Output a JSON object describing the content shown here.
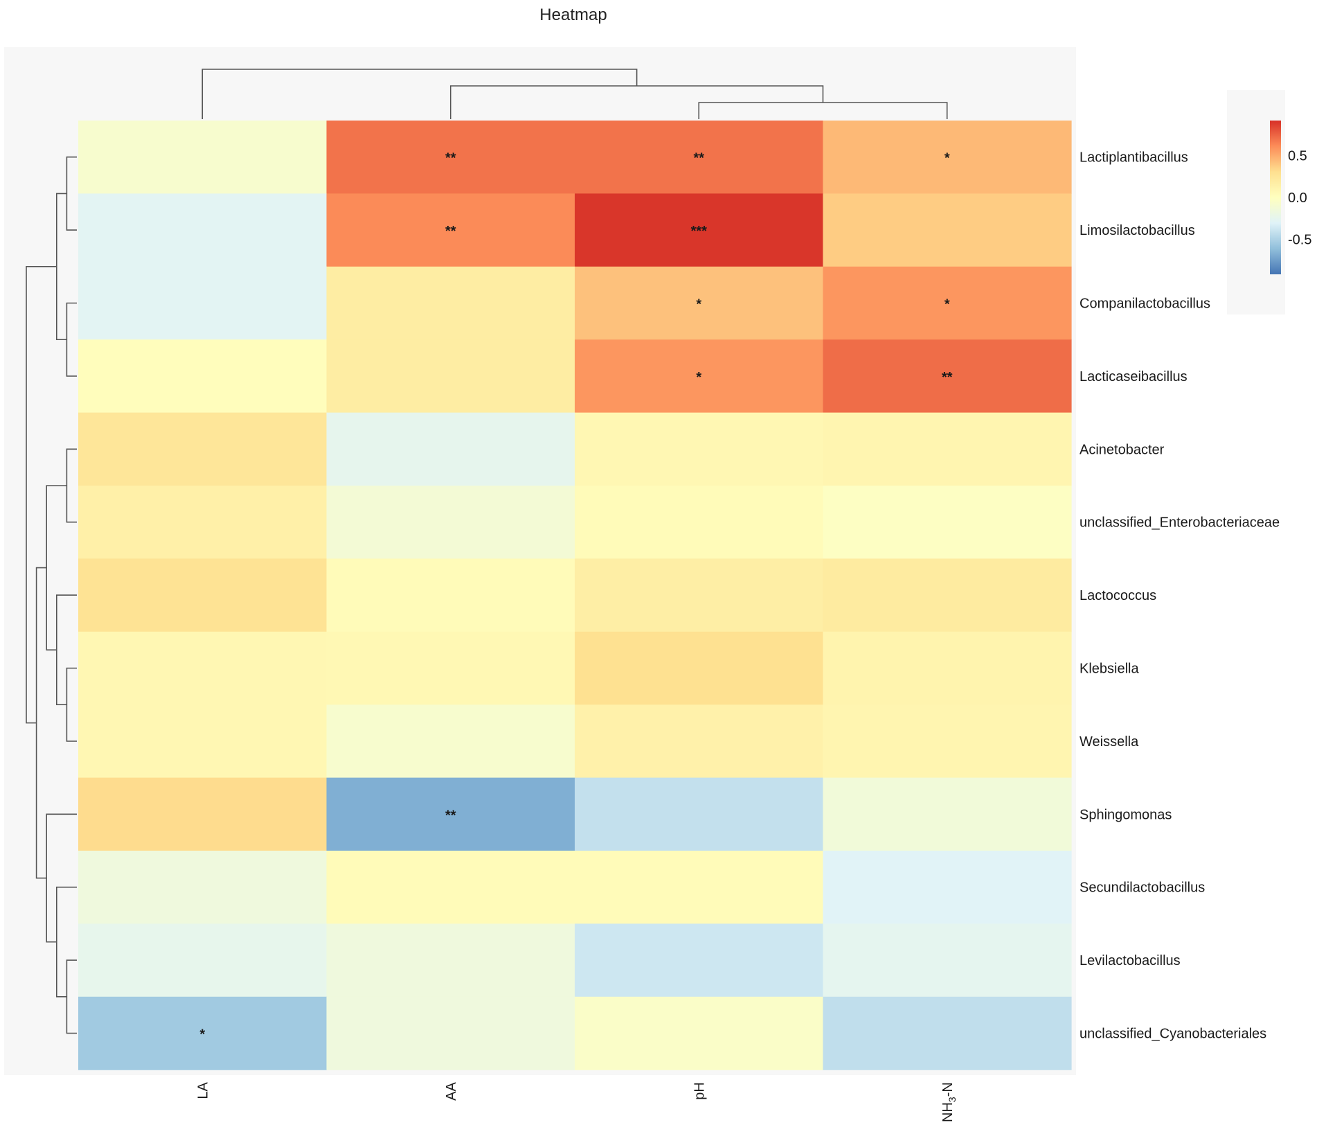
{
  "chart_data": {
    "type": "heatmap",
    "title": "Heatmap",
    "columns": [
      "LA",
      "AA",
      "pH",
      "NH3-N"
    ],
    "column_labels_display": [
      {
        "main": "LA",
        "sub": "",
        "tail": ""
      },
      {
        "main": "AA",
        "sub": "",
        "tail": ""
      },
      {
        "main": "pH",
        "sub": "",
        "tail": ""
      },
      {
        "main": "NH",
        "sub": "3",
        "tail": "-N"
      }
    ],
    "rows": [
      "Lactiplantibacillus",
      "Limosilactobacillus",
      "Companilactobacillus",
      "Lacticaseibacillus",
      "Acinetobacter",
      "unclassified_Enterobacteriaceae",
      "Lactococcus",
      "Klebsiella",
      "Weissella",
      "Sphingomonas",
      "Secundilactobacillus",
      "Levilactobacillus",
      "unclassified_Cyanobacteriales"
    ],
    "values": [
      [
        -0.08,
        0.7,
        0.7,
        0.45
      ],
      [
        -0.28,
        0.62,
        0.9,
        0.38
      ],
      [
        -0.28,
        0.18,
        0.42,
        0.58
      ],
      [
        0.02,
        0.18,
        0.58,
        0.72
      ],
      [
        0.25,
        -0.25,
        0.08,
        0.1
      ],
      [
        0.15,
        -0.12,
        0.04,
        -0.02
      ],
      [
        0.28,
        0.04,
        0.17,
        0.2
      ],
      [
        0.08,
        0.07,
        0.3,
        0.11
      ],
      [
        0.08,
        -0.08,
        0.14,
        0.1
      ],
      [
        0.32,
        -0.68,
        -0.42,
        -0.14
      ],
      [
        -0.16,
        0.04,
        0.04,
        -0.3
      ],
      [
        -0.24,
        -0.16,
        -0.38,
        -0.26
      ],
      [
        -0.55,
        -0.16,
        -0.05,
        -0.43
      ]
    ],
    "significance": [
      [
        "",
        "**",
        "**",
        "*"
      ],
      [
        "",
        "**",
        "***",
        ""
      ],
      [
        "",
        "",
        "*",
        "*"
      ],
      [
        "",
        "",
        "*",
        "**"
      ],
      [
        "",
        "",
        "",
        ""
      ],
      [
        "",
        "",
        "",
        ""
      ],
      [
        "",
        "",
        "",
        ""
      ],
      [
        "",
        "",
        "",
        ""
      ],
      [
        "",
        "",
        "",
        ""
      ],
      [
        "",
        "**",
        "",
        ""
      ],
      [
        "",
        "",
        "",
        ""
      ],
      [
        "",
        "",
        "",
        ""
      ],
      [
        "*",
        "",
        "",
        ""
      ]
    ],
    "colorbar": {
      "range": [
        -0.92,
        0.92
      ],
      "ticks": [
        0.5,
        0.0,
        -0.5
      ],
      "tick_labels": [
        "0.5",
        "0.0",
        "-0.5"
      ],
      "colors_low_to_high": [
        "#4575b4",
        "#91bfdb",
        "#e0f3f8",
        "#ffffbf",
        "#fee090",
        "#fc8d59",
        "#d73027"
      ]
    },
    "column_order_from_dendrogram": [
      "LA",
      "AA",
      "pH",
      "NH3-N"
    ],
    "column_dendrogram": "((LA),(AA,(pH,NH3-N)))",
    "row_dendrogram": "(((Lactiplantibacillus,Limosilactobacillus),(Companilactobacillus,Lacticaseibacillus)),(((Acinetobacter,unclassified_Enterobacteriaceae),(Lactococcus,(Klebsiella,Weissella))),(Sphingomonas,(Secundilactobacillus,(Levilactobacillus,unclassified_Cyanobacteriales)))))"
  }
}
